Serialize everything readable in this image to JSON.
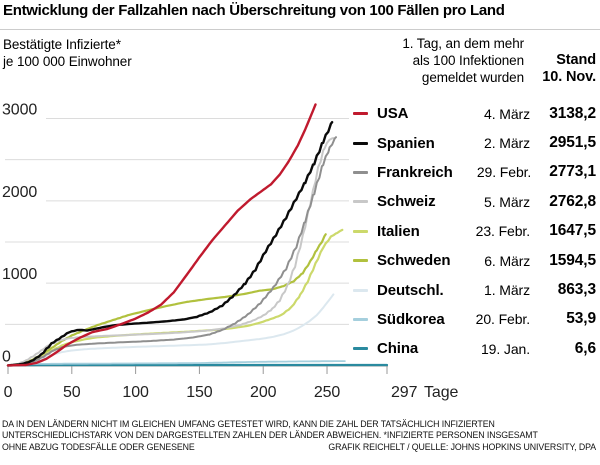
{
  "header": {
    "title": "Entwicklung der Fallzahlen nach Überschreitung von 100 Fällen pro Land"
  },
  "subtitle": {
    "line1": "Bestätigte Infizierte*",
    "line2": "je 100 000 Einwohner"
  },
  "legend_header": {
    "line1": "1. Tag, an dem mehr",
    "line2": "als 100 Infektionen",
    "line3": "gemeldet wurden",
    "stand_line1": "Stand",
    "stand_line2": "10. Nov."
  },
  "legend": {
    "rows": [
      {
        "name": "USA",
        "date": "4. März",
        "value": "3138,2",
        "color": "#c01a2e"
      },
      {
        "name": "Spanien",
        "date": "2. März",
        "value": "2951,5",
        "color": "#0a0a0a"
      },
      {
        "name": "Frankreich",
        "date": "29. Febr.",
        "value": "2773,1",
        "color": "#8f8f8f"
      },
      {
        "name": "Schweiz",
        "date": "5. März",
        "value": "2762,8",
        "color": "#c8c8c8"
      },
      {
        "name": "Italien",
        "date": "23. Febr.",
        "value": "1647,5",
        "color": "#ccd96b"
      },
      {
        "name": "Schweden",
        "date": "6. März",
        "value": "1594,5",
        "color": "#b1c13e"
      },
      {
        "name": "Deutschl.",
        "date": "1. März",
        "value": "863,3",
        "color": "#dce8ef"
      },
      {
        "name": "Südkorea",
        "date": "20. Febr.",
        "value": "53,9",
        "color": "#a5cfdd"
      },
      {
        "name": "China",
        "date": "19. Jan.",
        "value": "6,6",
        "color": "#2a8a9f"
      }
    ]
  },
  "chart_data": {
    "type": "line",
    "title": "Entwicklung der Fallzahlen nach Überschreitung von 100 Fällen pro Land",
    "xlabel": "Tage",
    "ylabel": "Bestätigte Infizierte* je 100 000 Einwohner",
    "xlim": [
      0,
      297
    ],
    "ylim": [
      0,
      3000
    ],
    "x_ticks": [
      0,
      50,
      100,
      150,
      200,
      250,
      297
    ],
    "y_ticks": [
      0,
      1000,
      2000,
      3000
    ],
    "gridline_step": 500,
    "grid": true,
    "legend_position": "right",
    "series": [
      {
        "name": "USA",
        "color": "#c01a2e",
        "start_date": "4. März",
        "final_value": 3138.2,
        "points": [
          [
            0,
            1
          ],
          [
            14,
            6
          ],
          [
            22,
            30
          ],
          [
            30,
            80
          ],
          [
            38,
            160
          ],
          [
            46,
            250
          ],
          [
            56,
            335
          ],
          [
            66,
            405
          ],
          [
            78,
            445
          ],
          [
            90,
            510
          ],
          [
            100,
            570
          ],
          [
            110,
            645
          ],
          [
            120,
            740
          ],
          [
            130,
            890
          ],
          [
            140,
            1100
          ],
          [
            150,
            1315
          ],
          [
            160,
            1520
          ],
          [
            170,
            1700
          ],
          [
            180,
            1880
          ],
          [
            190,
            2020
          ],
          [
            198,
            2110
          ],
          [
            206,
            2200
          ],
          [
            213,
            2320
          ],
          [
            220,
            2480
          ],
          [
            227,
            2670
          ],
          [
            233,
            2870
          ],
          [
            241,
            3170
          ]
        ]
      },
      {
        "name": "Spanien",
        "color": "#0a0a0a",
        "start_date": "2. März",
        "final_value": 2951.5,
        "points": [
          [
            0,
            1
          ],
          [
            10,
            15
          ],
          [
            18,
            50
          ],
          [
            26,
            130
          ],
          [
            34,
            265
          ],
          [
            42,
            345
          ],
          [
            48,
            405
          ],
          [
            54,
            430
          ],
          [
            58,
            432
          ],
          [
            62,
            424
          ],
          [
            68,
            444
          ],
          [
            76,
            470
          ],
          [
            84,
            490
          ],
          [
            95,
            505
          ],
          [
            110,
            520
          ],
          [
            125,
            538
          ],
          [
            138,
            560
          ],
          [
            148,
            592
          ],
          [
            158,
            645
          ],
          [
            168,
            730
          ],
          [
            177,
            850
          ],
          [
            186,
            1000
          ],
          [
            194,
            1170
          ],
          [
            202,
            1390
          ],
          [
            210,
            1590
          ],
          [
            218,
            1800
          ],
          [
            226,
            2030
          ],
          [
            233,
            2230
          ],
          [
            240,
            2460
          ],
          [
            247,
            2720
          ],
          [
            254,
            2955
          ]
        ]
      },
      {
        "name": "Frankreich",
        "color": "#8f8f8f",
        "start_date": "29. Febr.",
        "final_value": 2773.1,
        "points": [
          [
            0,
            1
          ],
          [
            12,
            12
          ],
          [
            20,
            45
          ],
          [
            28,
            110
          ],
          [
            36,
            185
          ],
          [
            44,
            228
          ],
          [
            54,
            252
          ],
          [
            70,
            268
          ],
          [
            90,
            283
          ],
          [
            110,
            296
          ],
          [
            130,
            315
          ],
          [
            145,
            340
          ],
          [
            158,
            378
          ],
          [
            168,
            432
          ],
          [
            178,
            512
          ],
          [
            188,
            618
          ],
          [
            198,
            762
          ],
          [
            208,
            945
          ],
          [
            218,
            1180
          ],
          [
            226,
            1450
          ],
          [
            233,
            1760
          ],
          [
            240,
            2100
          ],
          [
            247,
            2450
          ],
          [
            252,
            2640
          ],
          [
            257,
            2773
          ]
        ]
      },
      {
        "name": "Schweiz",
        "color": "#c8c8c8",
        "start_date": "5. März",
        "final_value": 2762.8,
        "points": [
          [
            0,
            4
          ],
          [
            8,
            20
          ],
          [
            14,
            60
          ],
          [
            20,
            115
          ],
          [
            26,
            180
          ],
          [
            32,
            248
          ],
          [
            40,
            302
          ],
          [
            48,
            332
          ],
          [
            58,
            347
          ],
          [
            75,
            359
          ],
          [
            95,
            371
          ],
          [
            115,
            384
          ],
          [
            135,
            400
          ],
          [
            155,
            422
          ],
          [
            170,
            452
          ],
          [
            182,
            492
          ],
          [
            192,
            545
          ],
          [
            200,
            605
          ],
          [
            207,
            685
          ],
          [
            213,
            795
          ],
          [
            219,
            965
          ],
          [
            225,
            1215
          ],
          [
            231,
            1565
          ],
          [
            237,
            1975
          ],
          [
            243,
            2390
          ],
          [
            248,
            2645
          ],
          [
            252,
            2745
          ],
          [
            255,
            2762
          ]
        ]
      },
      {
        "name": "Italien",
        "color": "#ccd96b",
        "start_date": "23. Febr.",
        "final_value": 1647.5,
        "points": [
          [
            0,
            1
          ],
          [
            10,
            15
          ],
          [
            18,
            45
          ],
          [
            26,
            105
          ],
          [
            34,
            178
          ],
          [
            42,
            242
          ],
          [
            50,
            283
          ],
          [
            60,
            318
          ],
          [
            70,
            342
          ],
          [
            85,
            362
          ],
          [
            100,
            377
          ],
          [
            120,
            394
          ],
          [
            140,
            410
          ],
          [
            160,
            430
          ],
          [
            175,
            452
          ],
          [
            188,
            482
          ],
          [
            198,
            522
          ],
          [
            206,
            565
          ],
          [
            214,
            610
          ],
          [
            222,
            705
          ],
          [
            229,
            855
          ],
          [
            235,
            1025
          ],
          [
            241,
            1235
          ],
          [
            247,
            1435
          ],
          [
            253,
            1565
          ],
          [
            258,
            1612
          ],
          [
            262,
            1647
          ]
        ]
      },
      {
        "name": "Schweden",
        "color": "#b1c13e",
        "start_date": "6. März",
        "final_value": 1594.5,
        "points": [
          [
            0,
            1
          ],
          [
            10,
            20
          ],
          [
            18,
            60
          ],
          [
            26,
            130
          ],
          [
            34,
            210
          ],
          [
            42,
            295
          ],
          [
            50,
            365
          ],
          [
            60,
            430
          ],
          [
            70,
            490
          ],
          [
            82,
            550
          ],
          [
            95,
            615
          ],
          [
            110,
            672
          ],
          [
            125,
            725
          ],
          [
            140,
            772
          ],
          [
            155,
            805
          ],
          [
            170,
            832
          ],
          [
            185,
            868
          ],
          [
            197,
            908
          ],
          [
            207,
            925
          ],
          [
            216,
            965
          ],
          [
            224,
            1025
          ],
          [
            231,
            1125
          ],
          [
            237,
            1265
          ],
          [
            242,
            1405
          ],
          [
            246,
            1505
          ],
          [
            249,
            1594
          ]
        ]
      },
      {
        "name": "Deutschl.",
        "color": "#dce8ef",
        "start_date": "1. März",
        "final_value": 863.3,
        "points": [
          [
            0,
            1
          ],
          [
            10,
            12
          ],
          [
            18,
            35
          ],
          [
            26,
            78
          ],
          [
            34,
            128
          ],
          [
            42,
            162
          ],
          [
            50,
            182
          ],
          [
            60,
            198
          ],
          [
            80,
            214
          ],
          [
            100,
            226
          ],
          [
            120,
            236
          ],
          [
            140,
            246
          ],
          [
            155,
            254
          ],
          [
            170,
            273
          ],
          [
            185,
            300
          ],
          [
            198,
            323
          ],
          [
            208,
            349
          ],
          [
            216,
            379
          ],
          [
            224,
            426
          ],
          [
            230,
            476
          ],
          [
            236,
            536
          ],
          [
            242,
            612
          ],
          [
            247,
            702
          ],
          [
            251,
            782
          ],
          [
            255,
            863
          ]
        ]
      },
      {
        "name": "Südkorea",
        "color": "#a5cfdd",
        "start_date": "20. Febr.",
        "final_value": 53.9,
        "points": [
          [
            0,
            0.3
          ],
          [
            4,
            3
          ],
          [
            8,
            8
          ],
          [
            12,
            13
          ],
          [
            16,
            16
          ],
          [
            24,
            19
          ],
          [
            40,
            21
          ],
          [
            70,
            23
          ],
          [
            100,
            25
          ],
          [
            130,
            27
          ],
          [
            150,
            29
          ],
          [
            165,
            35
          ],
          [
            180,
            40
          ],
          [
            200,
            45
          ],
          [
            220,
            48
          ],
          [
            240,
            51
          ],
          [
            264,
            54
          ]
        ]
      },
      {
        "name": "China",
        "color": "#2a8a9f",
        "start_date": "19. Jan.",
        "final_value": 6.6,
        "points": [
          [
            0,
            0.1
          ],
          [
            6,
            1.5
          ],
          [
            12,
            3.6
          ],
          [
            18,
            5.2
          ],
          [
            24,
            5.7
          ],
          [
            40,
            5.9
          ],
          [
            80,
            6.0
          ],
          [
            140,
            6.2
          ],
          [
            200,
            6.3
          ],
          [
            250,
            6.5
          ],
          [
            297,
            6.6
          ]
        ]
      }
    ]
  },
  "footer": {
    "line1": "DA IN DEN LÄNDERN NICHT IM GLEICHEN UMFANG GETESTET WIRD, KANN DIE ZAHL DER TATSÄCHLICH INFIZIERTEN",
    "line2": "UNTERSCHIEDLICHSTARK VON DEN DARGESTELLTEN ZAHLEN DER LÄNDER ABWEICHEN. *INFIZIERTE PERSONEN INSGESAMT",
    "line3_left": "OHNE ABZUG TODESFÄLLE ODER GENESENE",
    "line3_right": "GRAFIK REICHELT / QUELLE: JOHNS HOPKINS UNIVERSITY, DPA"
  },
  "colors": {
    "grid": "#dcdcdc",
    "axis": "#999999",
    "tick": "#999999",
    "text": "#000000",
    "rule": "#cccccc"
  }
}
